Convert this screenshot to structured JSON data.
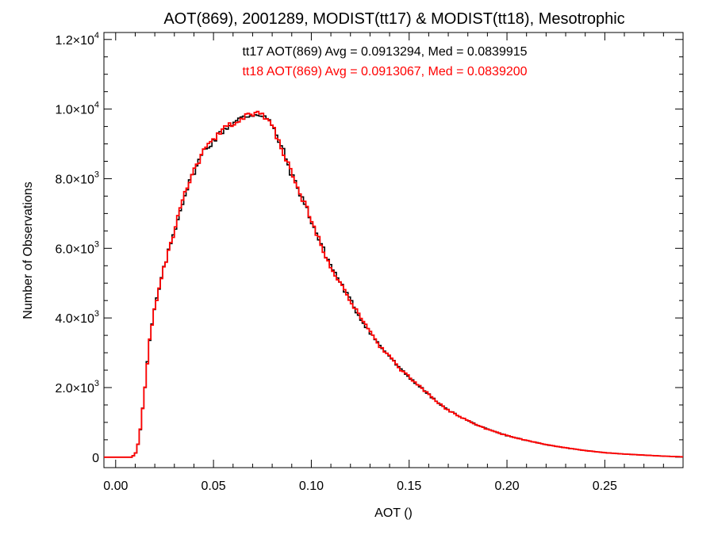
{
  "chart_data": {
    "type": "line",
    "step": "histogram",
    "title": "AOT(869), 2001289, MODIST(tt17) & MODIST(tt18), Mesotrophic",
    "xlabel": "AOT ()",
    "ylabel": "Number of Observations",
    "xlim": [
      -0.006,
      0.29
    ],
    "ylim": [
      -300,
      12200
    ],
    "xticks": [
      0.0,
      0.05,
      0.1,
      0.15,
      0.2,
      0.25
    ],
    "xtick_labels": [
      "0.00",
      "0.05",
      "0.10",
      "0.15",
      "0.20",
      "0.25"
    ],
    "yticks": [
      0,
      2000,
      4000,
      6000,
      8000,
      10000,
      12000
    ],
    "ytick_labels": [
      {
        "mant": "0",
        "exp": ""
      },
      {
        "mant": "2.0×10",
        "exp": "3"
      },
      {
        "mant": "4.0×10",
        "exp": "3"
      },
      {
        "mant": "6.0×10",
        "exp": "3"
      },
      {
        "mant": "8.0×10",
        "exp": "3"
      },
      {
        "mant": "1.0×10",
        "exp": "4"
      },
      {
        "mant": "1.2×10",
        "exp": "4"
      }
    ],
    "grid": false,
    "annotations": [
      {
        "text": "tt17 AOT(869) Avg = 0.0913294, Med = 0.0839915",
        "color": "#000000"
      },
      {
        "text": "tt18 AOT(869) Avg = 0.0913067, Med = 0.0839200",
        "color": "#ff0000"
      }
    ],
    "series": [
      {
        "color": "#000000",
        "x": [
          -0.006,
          0.0,
          0.005,
          0.008,
          0.01,
          0.012,
          0.013,
          0.015,
          0.017,
          0.02,
          0.025,
          0.03,
          0.035,
          0.04,
          0.045,
          0.05,
          0.055,
          0.06,
          0.065,
          0.07,
          0.075,
          0.078,
          0.08,
          0.085,
          0.09,
          0.095,
          0.1,
          0.105,
          0.11,
          0.115,
          0.12,
          0.125,
          0.13,
          0.135,
          0.14,
          0.145,
          0.15,
          0.155,
          0.16,
          0.165,
          0.17,
          0.175,
          0.18,
          0.185,
          0.19,
          0.2,
          0.21,
          0.22,
          0.23,
          0.24,
          0.25,
          0.26,
          0.27,
          0.28,
          0.29
        ],
        "y": [
          0,
          0,
          0,
          0,
          80,
          500,
          1000,
          2000,
          3200,
          4300,
          5500,
          6500,
          7500,
          8200,
          8800,
          9100,
          9400,
          9600,
          9750,
          9850,
          9850,
          9700,
          9500,
          8900,
          8100,
          7500,
          6800,
          6100,
          5500,
          5000,
          4500,
          4000,
          3600,
          3200,
          2900,
          2550,
          2300,
          2050,
          1800,
          1550,
          1350,
          1200,
          1050,
          920,
          800,
          620,
          480,
          360,
          270,
          190,
          130,
          90,
          60,
          30,
          10
        ]
      },
      {
        "color": "#ff0000",
        "x": [
          -0.006,
          0.0,
          0.005,
          0.008,
          0.01,
          0.012,
          0.013,
          0.015,
          0.017,
          0.02,
          0.025,
          0.03,
          0.035,
          0.04,
          0.045,
          0.05,
          0.055,
          0.06,
          0.065,
          0.07,
          0.075,
          0.078,
          0.08,
          0.085,
          0.09,
          0.095,
          0.1,
          0.105,
          0.11,
          0.115,
          0.12,
          0.125,
          0.13,
          0.135,
          0.14,
          0.145,
          0.15,
          0.155,
          0.16,
          0.165,
          0.17,
          0.175,
          0.18,
          0.185,
          0.19,
          0.2,
          0.21,
          0.22,
          0.23,
          0.24,
          0.25,
          0.26,
          0.27,
          0.28,
          0.29
        ],
        "y": [
          0,
          0,
          0,
          0,
          80,
          500,
          1000,
          2000,
          3200,
          4300,
          5500,
          6500,
          7500,
          8200,
          8800,
          9100,
          9400,
          9600,
          9750,
          9850,
          9850,
          9700,
          9500,
          8900,
          8100,
          7500,
          6800,
          6100,
          5500,
          5000,
          4500,
          4000,
          3600,
          3200,
          2900,
          2550,
          2300,
          2050,
          1800,
          1550,
          1350,
          1200,
          1050,
          920,
          800,
          620,
          480,
          360,
          270,
          190,
          130,
          90,
          60,
          30,
          10
        ]
      }
    ]
  }
}
